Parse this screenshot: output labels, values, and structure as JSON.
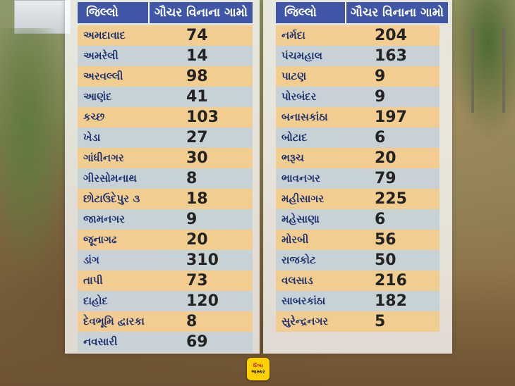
{
  "left_table": {
    "header_district": "જિલ્લો",
    "header_count": "ગૌચર વિનાના ગામો",
    "rows": [
      {
        "district": "અમદાવાદ",
        "count": "74"
      },
      {
        "district": "અમરેલી",
        "count": "14"
      },
      {
        "district": "અરવલ્લી",
        "count": "98"
      },
      {
        "district": "આણંદ",
        "count": "41"
      },
      {
        "district": "કચ્છ",
        "count": "103"
      },
      {
        "district": "ખેડા",
        "count": "27"
      },
      {
        "district": "ગાંધીનગર",
        "count": "30"
      },
      {
        "district": "ગીરસોમનાથ",
        "count": "8"
      },
      {
        "district": "છોટાઉદેપુર ૩",
        "count": "18"
      },
      {
        "district": "જામનગર",
        "count": "9"
      },
      {
        "district": "જૂનાગઢ",
        "count": "20"
      },
      {
        "district": "ડાંગ",
        "count": "310"
      },
      {
        "district": "તાપી",
        "count": "73"
      },
      {
        "district": "દાહોદ",
        "count": "120"
      },
      {
        "district": "દેવભૂમિ દ્વારકા",
        "count": "8"
      },
      {
        "district": "નવસારી",
        "count": "69"
      }
    ]
  },
  "right_table": {
    "header_district": "જિલ્લો",
    "header_count": "ગૌચર વિનાના ગામો",
    "rows": [
      {
        "district": "નર્મદા",
        "count": "204"
      },
      {
        "district": "પંચમહાલ",
        "count": "163"
      },
      {
        "district": "પાટણ",
        "count": "9"
      },
      {
        "district": "પોરબંદર",
        "count": "9"
      },
      {
        "district": "બનાસકાંઠા",
        "count": "197"
      },
      {
        "district": "બોટાદ",
        "count": "6"
      },
      {
        "district": "ભરૂચ",
        "count": "20"
      },
      {
        "district": "ભાવનગર",
        "count": "79"
      },
      {
        "district": "મહીસાગર",
        "count": "225"
      },
      {
        "district": "મહેસાણા",
        "count": "6"
      },
      {
        "district": "મોરબી",
        "count": "56"
      },
      {
        "district": "રાજકોટ",
        "count": "50"
      },
      {
        "district": "વલસાડ",
        "count": "216"
      },
      {
        "district": "સાબરકાંઠા",
        "count": "182"
      },
      {
        "district": "સુરેન્દ્રનગર",
        "count": "5"
      }
    ]
  },
  "logo": {
    "line1": "દિવ્ય",
    "line2": "ભાસ્કર",
    "color": "#ffd100"
  }
}
